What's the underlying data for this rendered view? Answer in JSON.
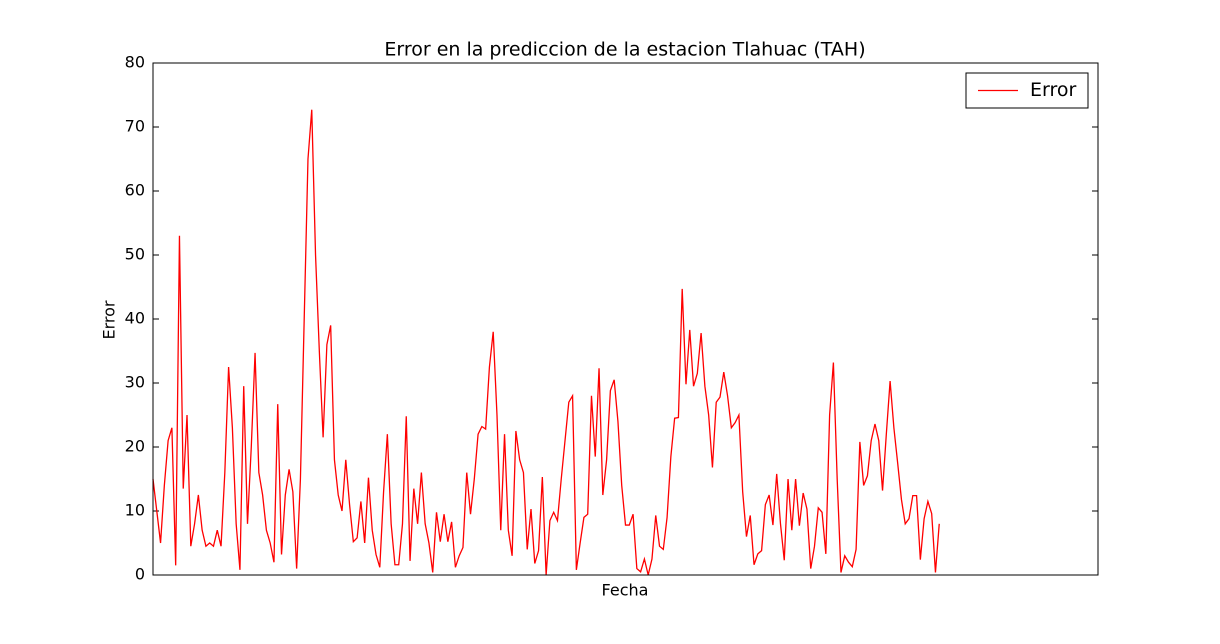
{
  "chart_data": {
    "type": "line",
    "title": "Error en la prediccion de la estacion Tlahuac (TAH)",
    "x_label": "Fecha",
    "y_label": "Error",
    "series": [
      {
        "name": "Error",
        "color": "#ff0000",
        "values": [
          15,
          10,
          5,
          14,
          21,
          23,
          1.5,
          53,
          13.5,
          25,
          4.5,
          8,
          12.5,
          7,
          4.5,
          5,
          4.5,
          7,
          4.5,
          16,
          32.5,
          23,
          8,
          0.8,
          29.5,
          8,
          20,
          34.7,
          16,
          12.5,
          7,
          5,
          2,
          26.7,
          3.2,
          12.5,
          16.5,
          13,
          1,
          15,
          40,
          65,
          72.7,
          50,
          35,
          21.5,
          36,
          39,
          18,
          12.5,
          10,
          18,
          11,
          5.2,
          5.8,
          11.5,
          5,
          15.2,
          7,
          3.2,
          1.2,
          13,
          22,
          8,
          1.6,
          1.6,
          8,
          24.8,
          2.2,
          13.5,
          8,
          16,
          8,
          5,
          0.4,
          9.8,
          5.2,
          9.5,
          5.2,
          8.3,
          1.2,
          3,
          4.3,
          16,
          9.5,
          15,
          22,
          23.2,
          22.8,
          32.5,
          38,
          25,
          7,
          22,
          7,
          3,
          22.5,
          18,
          16,
          4,
          10.3,
          1.8,
          3.8,
          15.3,
          0,
          8.5,
          9.8,
          8.5,
          15,
          21,
          27,
          28,
          0.8,
          5,
          9,
          9.5,
          28,
          18.5,
          32.3,
          12.5,
          18,
          28.8,
          30.5,
          24,
          14,
          7.8,
          7.8,
          9.5,
          1,
          0.5,
          2.5,
          0,
          2.5,
          9.3,
          4.5,
          4,
          9,
          18.5,
          24.5,
          24.6,
          44.7,
          29.8,
          38.3,
          29.5,
          31.5,
          37.8,
          29.5,
          25,
          16.8,
          27,
          27.8,
          31.7,
          28,
          23,
          23.8,
          25,
          13,
          6,
          9.3,
          1.6,
          3.3,
          3.8,
          11,
          12.5,
          7.8,
          15.8,
          8,
          2.3,
          15,
          7,
          15,
          7.7,
          12.8,
          10.3,
          1,
          4.5,
          10.5,
          9.8,
          3.3,
          25,
          33.2,
          15,
          0.4,
          3,
          2,
          1.3,
          4,
          20.8,
          14,
          15.5,
          21,
          23.6,
          21,
          13.2,
          22,
          30.3,
          23,
          17.5,
          11.8,
          8,
          8.8,
          12.4,
          12.4,
          2.4,
          8.8,
          11.5,
          9.6,
          0.4,
          8
        ]
      }
    ],
    "xlim": [
      0,
      250
    ],
    "ylim": [
      0,
      80
    ],
    "yticks": [
      0,
      10,
      20,
      30,
      40,
      50,
      60,
      70,
      80
    ],
    "legend": "upper right",
    "grid": false
  }
}
